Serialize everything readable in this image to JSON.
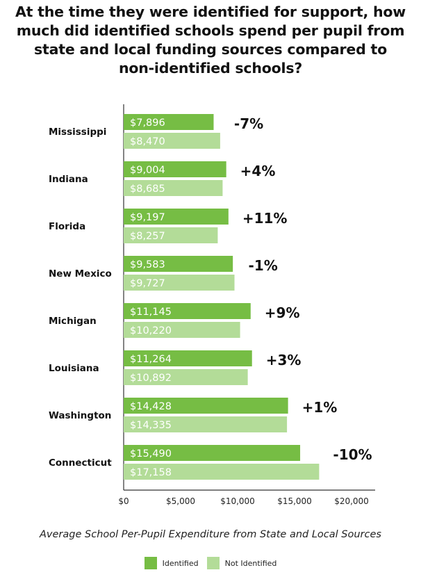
{
  "title_lines": [
    "At the time they were identified for support, how",
    "much did identified schools spend per pupil from",
    "state and local funding sources compared to",
    "non-identified schools?"
  ],
  "caption": "Average School Per-Pupil Expenditure from State and Local Sources",
  "legend": [
    {
      "label": "Identified",
      "color": "#76bd44"
    },
    {
      "label": "Not Identified",
      "color": "#b3dc98"
    }
  ],
  "chart_data": {
    "type": "bar",
    "orientation": "horizontal",
    "categories": [
      "Mississippi",
      "Indiana",
      "Florida",
      "New Mexico",
      "Michigan",
      "Louisiana",
      "Washington",
      "Connecticut"
    ],
    "series": [
      {
        "name": "Identified",
        "color": "#76bd44",
        "values": [
          7896,
          9004,
          9197,
          9583,
          11145,
          11264,
          14428,
          15490
        ],
        "labels": [
          "$7,896",
          "$9,004",
          "$9,197",
          "$9,583",
          "$11,145",
          "$11,264",
          "$14,428",
          "$15,490"
        ]
      },
      {
        "name": "Not Identified",
        "color": "#b3dc98",
        "values": [
          8470,
          8685,
          8257,
          9727,
          10220,
          10892,
          14335,
          17158
        ],
        "labels": [
          "$8,470",
          "$8,685",
          "$8,257",
          "$9,727",
          "$10,220",
          "$10,892",
          "$14,335",
          "$17,158"
        ]
      }
    ],
    "differences": [
      "-7%",
      "+4%",
      "+11%",
      "-1%",
      "+9%",
      "+3%",
      "+1%",
      "-10%"
    ],
    "xlim": [
      0,
      21000
    ],
    "xticks": [
      0,
      5000,
      10000,
      15000,
      20000
    ],
    "xtick_labels": [
      "$0",
      "$5,000",
      "$10,000",
      "$15,000",
      "$20,000"
    ],
    "xlabel": "Average School Per-Pupil Expenditure from State and Local Sources",
    "grid": false,
    "legend_position": "bottom"
  }
}
